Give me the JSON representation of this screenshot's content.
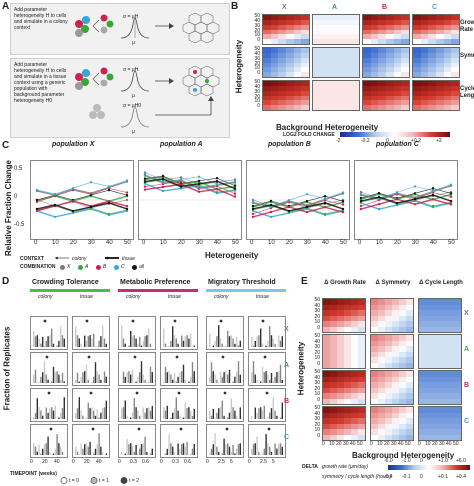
{
  "panels": {
    "A": {
      "letter": "A",
      "step1_text": "Add parameter heterogeneity H to cells and simulate in a colony context",
      "step2_text": "Add parameter heterogeneity H to cells and simulate in a tissue context using a generic population with background parameter heterogeneity H0",
      "sigma_label": "σ = μH",
      "mu_label": "μ",
      "sigma0_label": "σ = μH0"
    },
    "B": {
      "letter": "B",
      "populations": [
        "X",
        "A",
        "B",
        "C"
      ],
      "pop_colors": [
        "#7a7a7a",
        "#3aa63a",
        "#d02050",
        "#36a6d8"
      ],
      "row_labels": [
        "Growth Rate",
        "Symmetry",
        "Cycle Length"
      ],
      "y_ticks": [
        "50",
        "40",
        "30",
        "20",
        "10",
        "0"
      ],
      "ylabel": "Heterogeneity",
      "xlabel": "Background Heterogeneity",
      "legend_title": "LOG2 FOLD CHANGE",
      "legend_ticks": [
        "-2",
        "-0.2",
        "0",
        "+0.2",
        "+2"
      ]
    },
    "C": {
      "letter": "C",
      "titles": [
        "population X",
        "population A",
        "population B",
        "population C"
      ],
      "ylabel": "Relative Fraction Change",
      "xlabel": "Heterogeneity",
      "x_ticks": [
        "0",
        "10",
        "20",
        "30",
        "40",
        "50"
      ],
      "y_ticks": [
        "0.5",
        "0",
        "-0.5"
      ],
      "context_label": "CONTEXT",
      "context_items": [
        "colony",
        "tissue"
      ],
      "combination_label": "COMBINATION",
      "combination_items": [
        "X",
        "A",
        "B",
        "C",
        "all"
      ],
      "combination_colors": [
        "#7a7a7a",
        "#3aa63a",
        "#d02050",
        "#36a6d8",
        "#111111"
      ]
    },
    "D": {
      "letter": "D",
      "columns": [
        "Crowding Tolerance",
        "Metabolic Preference",
        "Migratory Threshold"
      ],
      "column_colors": [
        "#4cbb4c",
        "#c0307a",
        "#7fc4e6"
      ],
      "contexts": [
        "colony",
        "tissue"
      ],
      "row_labels": [
        "X",
        "A",
        "B",
        "C"
      ],
      "ylabel": "Fraction of Replicates",
      "x_ticks_crowding": [
        "0",
        "20",
        "40"
      ],
      "x_ticks_metabolic": [
        "0",
        "0.3",
        "0.6"
      ],
      "x_ticks_migratory": [
        "0",
        "2.5",
        "5"
      ],
      "timepoint_label": "TIMEPOINT (weeks)",
      "timepoint_items": [
        "t = 0",
        "t = 1",
        "t = 2"
      ]
    },
    "E": {
      "letter": "E",
      "col_titles": [
        "Δ Growth Rate",
        "Δ Symmetry",
        "Δ Cycle Length"
      ],
      "row_labels": [
        "X",
        "A",
        "B",
        "C"
      ],
      "y_ticks": [
        "50",
        "40",
        "30",
        "20",
        "10",
        "0"
      ],
      "ylabel": "Heterogeneity",
      "xlabel": "Background Heterogeneity",
      "x_ticks": [
        "0",
        "10",
        "20",
        "30",
        "40",
        "50"
      ],
      "legend_delta": "DELTA",
      "legend_line1": "growth rate (μm/day)",
      "legend_line1_ticks": [
        "-6.0",
        "-1.0",
        "0",
        "+1.0",
        "+6.0"
      ],
      "legend_line2": "symmetry / cycle length (hours)",
      "legend_line2_ticks": [
        "-0.4",
        "-0.1",
        "0",
        "+0.1",
        "+0.4"
      ]
    }
  }
}
